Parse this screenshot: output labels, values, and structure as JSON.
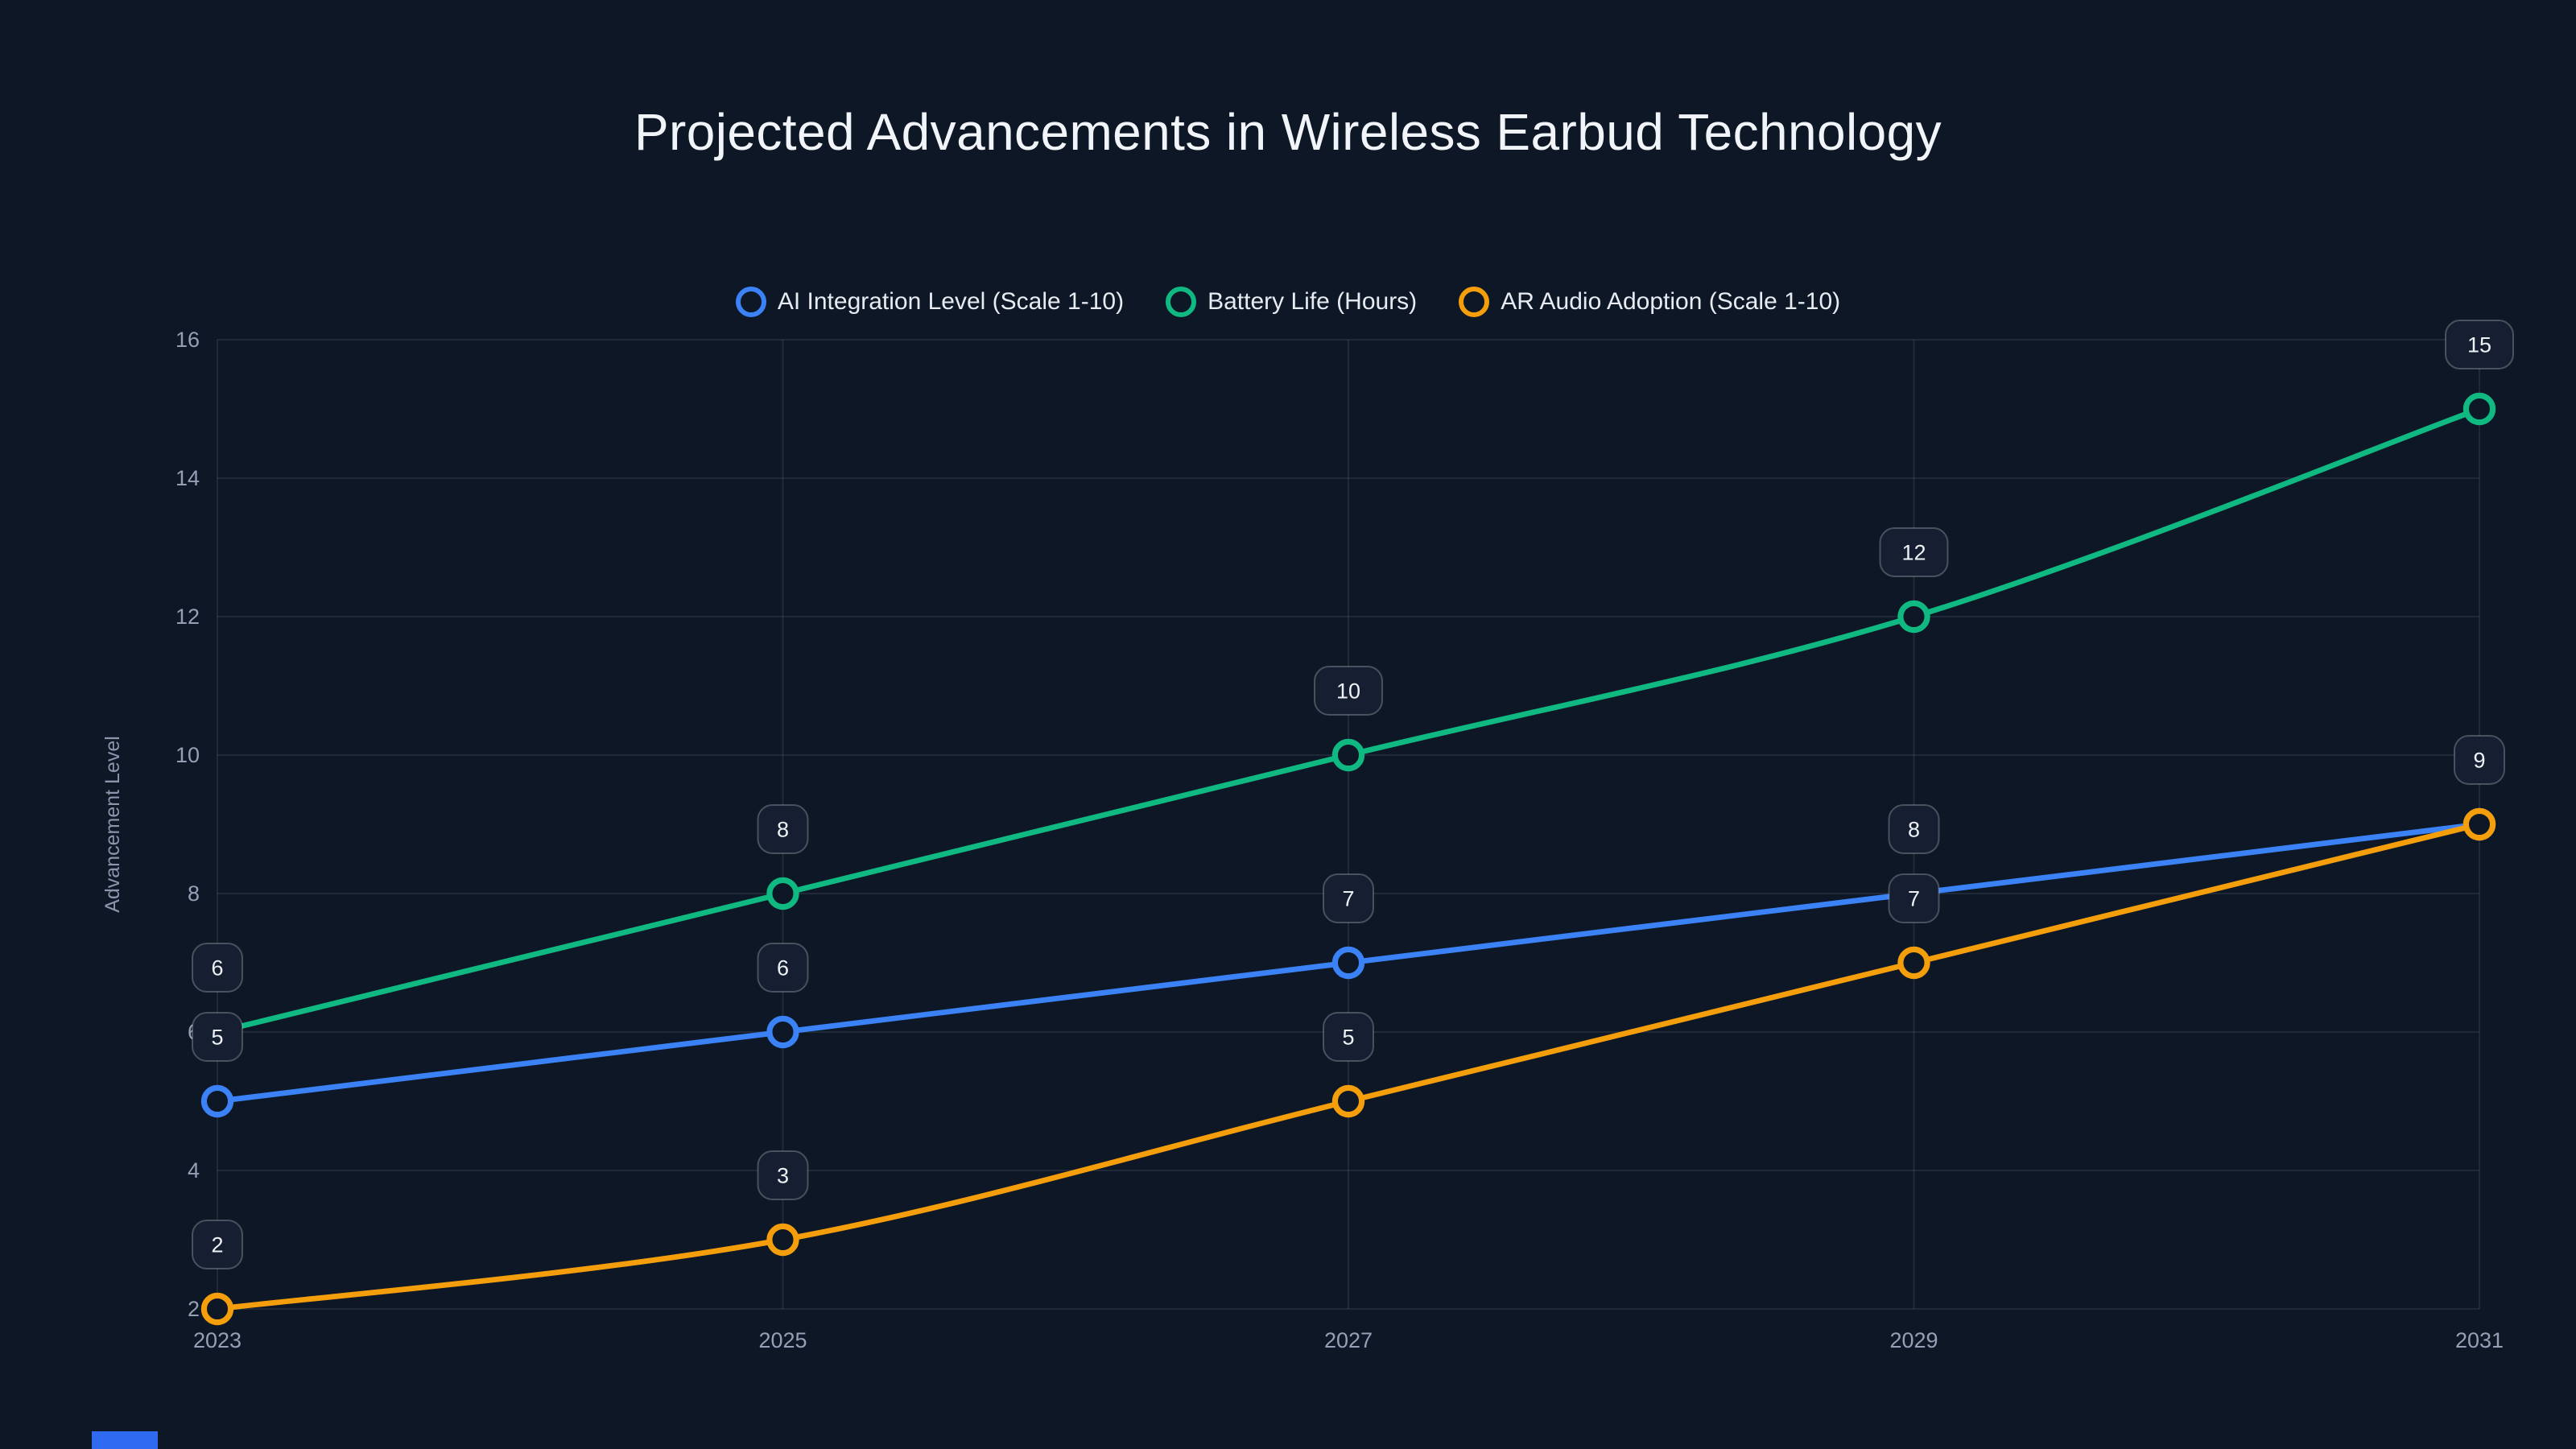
{
  "page": {
    "background": "#0d1726",
    "accent_bar_color": "#2e6bf0"
  },
  "chart_data": {
    "type": "line",
    "title": "Projected Advancements in Wireless Earbud Technology",
    "x": [
      2023,
      2025,
      2027,
      2029,
      2031
    ],
    "xticks": [
      "2023",
      "2025",
      "2027",
      "2029",
      "2031"
    ],
    "series": [
      {
        "name": "AI Integration Level (Scale 1-10)",
        "color": "#3b82f6",
        "values": [
          5,
          6,
          7,
          8,
          9
        ]
      },
      {
        "name": "Battery Life (Hours)",
        "color": "#10b981",
        "values": [
          6,
          8,
          10,
          12,
          15
        ]
      },
      {
        "name": "AR Audio Adoption (Scale 1-10)",
        "color": "#f59e0b",
        "values": [
          2,
          3,
          5,
          7,
          9
        ]
      }
    ],
    "xlabel": "",
    "ylabel": "Advancement Level",
    "ylim": [
      2,
      16
    ],
    "yticks": [
      2,
      4,
      6,
      8,
      10,
      12,
      14,
      16
    ],
    "grid": true,
    "legend_position": "top-center",
    "point_labels": true,
    "point_label_style": "rounded-badge",
    "marker_style": "open-circle"
  }
}
